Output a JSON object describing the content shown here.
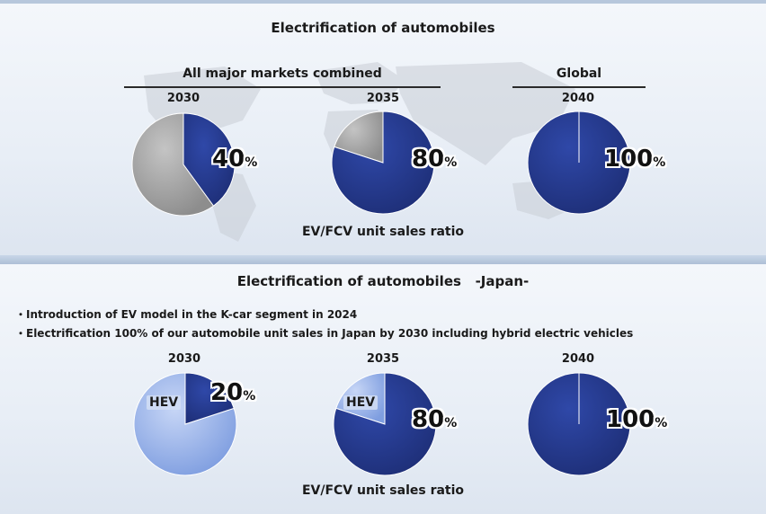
{
  "top": {
    "title": "Electrification of automobiles",
    "header_combined": "All major markets combined",
    "header_global": "Global",
    "subtitle": "EV/FCV unit sales ratio"
  },
  "bottom": {
    "title": "Electrification of automobiles   -Japan-",
    "bullets": [
      "・Introduction of EV model in the K-car segment in 2024",
      "・Electrification 100% of our automobile unit sales in Japan by 2030 including hybrid electric vehicles"
    ],
    "subtitle": "EV/FCV unit sales ratio"
  },
  "colors": {
    "ev": "#1e2f78",
    "other_gray": "#8d8d8d",
    "hev": "#7f9ee0"
  },
  "chart_data": [
    {
      "type": "pie",
      "title": "All major markets combined",
      "categories": [
        "2030",
        "2035"
      ],
      "series": [
        {
          "name": "EV/FCV unit sales ratio",
          "values": [
            40,
            80
          ]
        }
      ],
      "labels": [
        "40%",
        "80%"
      ]
    },
    {
      "type": "pie",
      "title": "Global",
      "categories": [
        "2040"
      ],
      "series": [
        {
          "name": "EV/FCV unit sales ratio",
          "values": [
            100
          ]
        }
      ],
      "labels": [
        "100%"
      ]
    },
    {
      "type": "pie",
      "title": "Electrification of automobiles -Japan-",
      "categories": [
        "2030",
        "2035",
        "2040"
      ],
      "series": [
        {
          "name": "EV/FCV unit sales ratio",
          "values": [
            20,
            80,
            100
          ]
        },
        {
          "name": "HEV",
          "values": [
            80,
            20,
            0
          ]
        }
      ],
      "labels": [
        "20%",
        "80%",
        "100%"
      ],
      "other_label": "HEV"
    }
  ]
}
